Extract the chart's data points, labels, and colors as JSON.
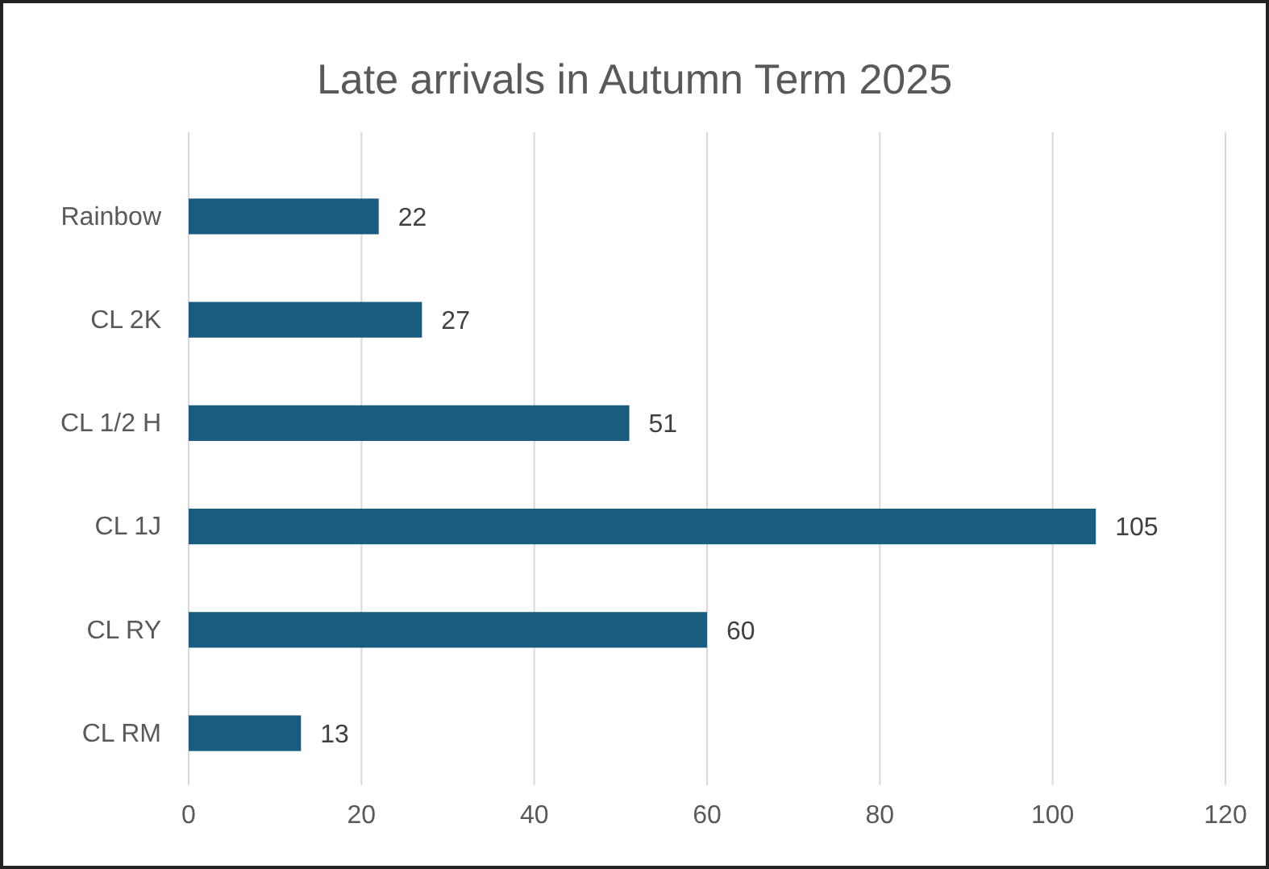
{
  "chart_data": {
    "type": "bar",
    "title": "Late arrivals in Autumn Term 2025",
    "orientation": "horizontal",
    "categories": [
      "Rainbow",
      "CL 2K",
      "CL 1/2 H",
      "CL 1J",
      "CL RY",
      "CL RM"
    ],
    "values": [
      22,
      27,
      51,
      105,
      60,
      13
    ],
    "color": "#1a5c7f",
    "xlim": [
      0,
      120
    ],
    "xticks": [
      0,
      20,
      40,
      60,
      80,
      100,
      120
    ],
    "grid": "x",
    "data_labels": true
  }
}
